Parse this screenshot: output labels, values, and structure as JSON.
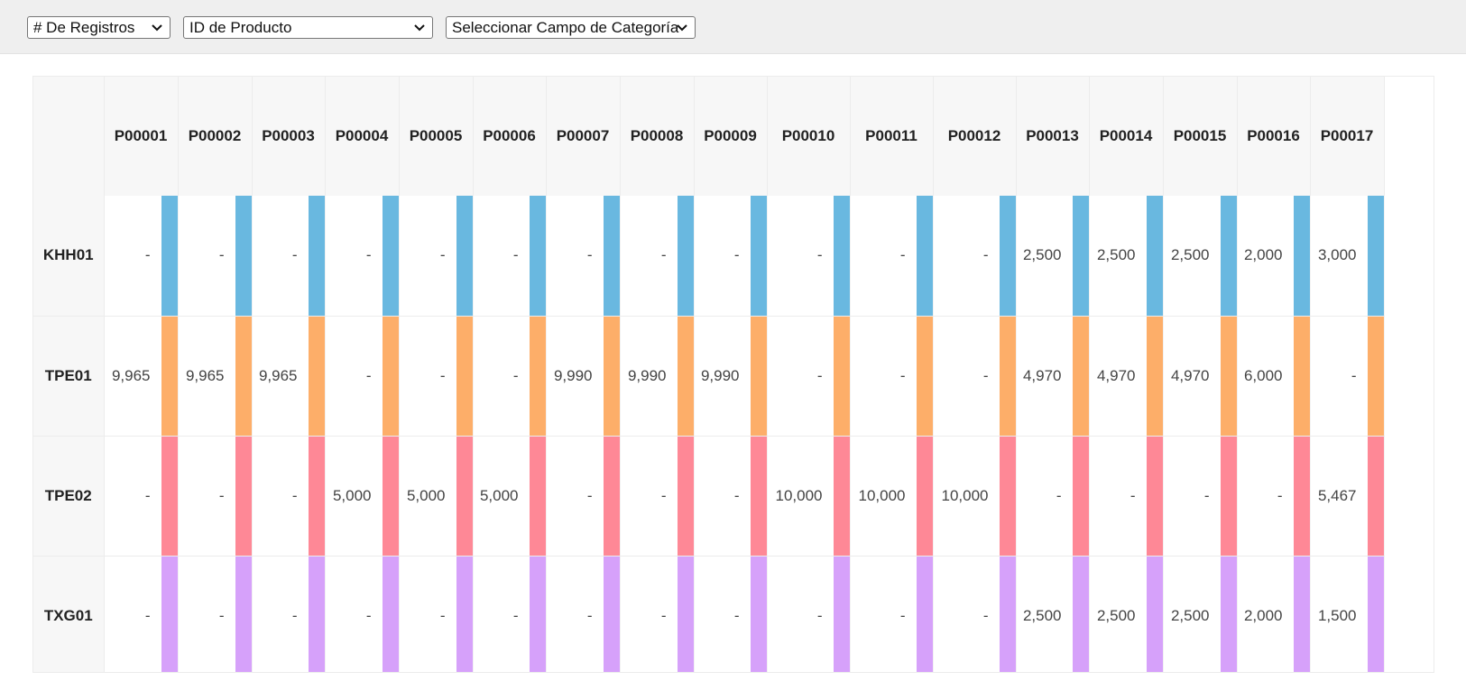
{
  "toolbar": {
    "measure_select": "# De Registros",
    "row_field_select": "ID de Producto",
    "category_select": "Seleccionar Campo de Categoría"
  },
  "colors": {
    "KHH01": "#69b8e0",
    "TPE01": "#fdae69",
    "TPE02": "#fe8896",
    "TXG01": "#d6a1fa"
  },
  "columns": [
    "P00001",
    "P00002",
    "P00003",
    "P00004",
    "P00005",
    "P00006",
    "P00007",
    "P00008",
    "P00009",
    "P00010",
    "P00011",
    "P00012",
    "P00013",
    "P00014",
    "P00015",
    "P00016",
    "P00017"
  ],
  "rows": [
    {
      "label": "KHH01",
      "values": [
        "-",
        "-",
        "-",
        "-",
        "-",
        "-",
        "-",
        "-",
        "-",
        "-",
        "-",
        "-",
        "2,500",
        "2,500",
        "2,500",
        "2,000",
        "3,000"
      ]
    },
    {
      "label": "TPE01",
      "values": [
        "9,965",
        "9,965",
        "9,965",
        "-",
        "-",
        "-",
        "9,990",
        "9,990",
        "9,990",
        "-",
        "-",
        "-",
        "4,970",
        "4,970",
        "4,970",
        "6,000",
        "-"
      ]
    },
    {
      "label": "TPE02",
      "values": [
        "-",
        "-",
        "-",
        "5,000",
        "5,000",
        "5,000",
        "-",
        "-",
        "-",
        "10,000",
        "10,000",
        "10,000",
        "-",
        "-",
        "-",
        "-",
        "5,467"
      ]
    },
    {
      "label": "TXG01",
      "values": [
        "-",
        "-",
        "-",
        "-",
        "-",
        "-",
        "-",
        "-",
        "-",
        "-",
        "-",
        "-",
        "2,500",
        "2,500",
        "2,500",
        "2,000",
        "1,500"
      ]
    }
  ]
}
